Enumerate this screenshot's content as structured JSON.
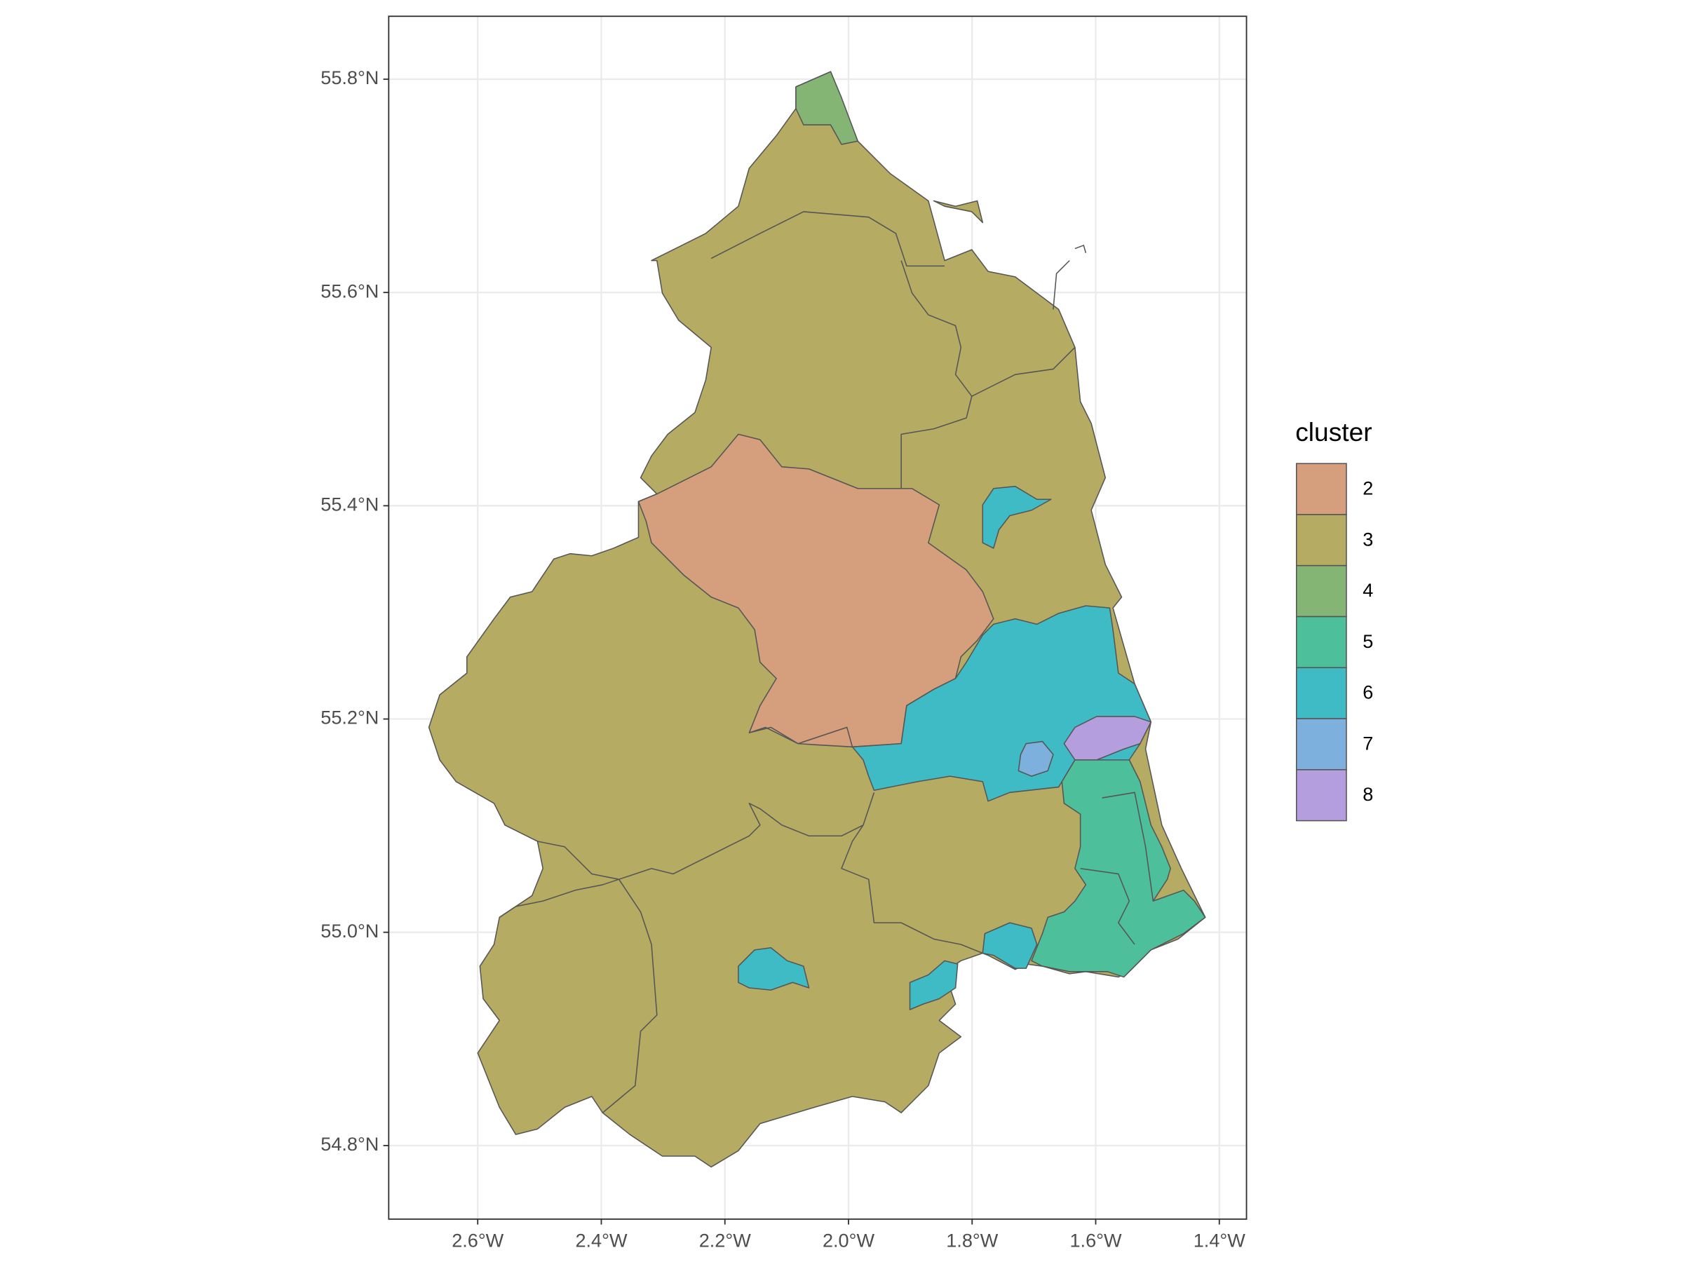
{
  "chart_data": {
    "type": "map",
    "xlim": [
      -2.744,
      -1.356
    ],
    "ylim": [
      54.731,
      55.859
    ],
    "xticks": [
      {
        "value": -2.6,
        "label": "2.6°W"
      },
      {
        "value": -2.4,
        "label": "2.4°W"
      },
      {
        "value": -2.2,
        "label": "2.2°W"
      },
      {
        "value": -2.0,
        "label": "2.0°W"
      },
      {
        "value": -1.8,
        "label": "1.8°W"
      },
      {
        "value": -1.6,
        "label": "1.6°W"
      },
      {
        "value": -1.4,
        "label": "1.4°W"
      }
    ],
    "yticks": [
      {
        "value": 54.8,
        "label": "54.8°N"
      },
      {
        "value": 55.0,
        "label": "55.0°N"
      },
      {
        "value": 55.2,
        "label": "55.2°N"
      },
      {
        "value": 55.4,
        "label": "55.4°N"
      },
      {
        "value": 55.6,
        "label": "55.6°N"
      },
      {
        "value": 55.8,
        "label": "55.8°N"
      }
    ],
    "grid": true,
    "legend": {
      "title": "cluster",
      "position": "right",
      "items": [
        {
          "label": "2",
          "color": "#d59e7c"
        },
        {
          "label": "3",
          "color": "#b5ab63"
        },
        {
          "label": "4",
          "color": "#85b574"
        },
        {
          "label": "5",
          "color": "#4ebf9b"
        },
        {
          "label": "6",
          "color": "#3ebbc4"
        },
        {
          "label": "7",
          "color": "#7db0dc"
        },
        {
          "label": "8",
          "color": "#b59ede"
        }
      ]
    }
  }
}
